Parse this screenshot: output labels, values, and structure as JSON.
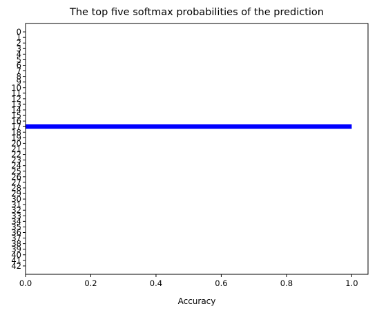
{
  "chart_data": {
    "type": "bar",
    "orientation": "horizontal",
    "title": "The top five softmax probabilities of the prediction",
    "xlabel": "Accuracy",
    "ylabel": "",
    "xlim": [
      0.0,
      1.05
    ],
    "ylim": [
      43.5,
      -1.5
    ],
    "categories": [
      "0",
      "1",
      "2",
      "3",
      "4",
      "5",
      "6",
      "7",
      "8",
      "9",
      "10",
      "11",
      "12",
      "13",
      "14",
      "15",
      "16",
      "17",
      "18",
      "19",
      "20",
      "21",
      "22",
      "23",
      "24",
      "25",
      "26",
      "27",
      "28",
      "29",
      "30",
      "31",
      "32",
      "33",
      "34",
      "35",
      "36",
      "37",
      "38",
      "39",
      "40",
      "41",
      "42"
    ],
    "x_ticks": [
      "0.0",
      "0.2",
      "0.4",
      "0.6",
      "0.8",
      "1.0"
    ],
    "x_tick_values": [
      0.0,
      0.2,
      0.4,
      0.6,
      0.8,
      1.0
    ],
    "series": [
      {
        "color": "#0000ff",
        "bars": [
          {
            "category": 17,
            "value": 1.0
          },
          {
            "category": 0,
            "value": 0.0
          },
          {
            "category": 1,
            "value": 0.0
          },
          {
            "category": 2,
            "value": 0.0
          },
          {
            "category": 3,
            "value": 0.0
          }
        ]
      }
    ],
    "grid": false,
    "legend": "none"
  }
}
